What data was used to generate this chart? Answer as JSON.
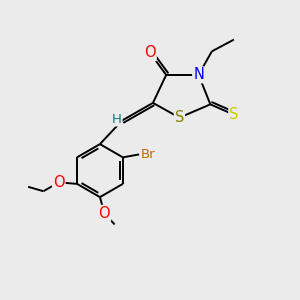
{
  "bg_color": "#ebebeb",
  "bond_color": "#000000",
  "atom_colors": {
    "O": "#ff0000",
    "N": "#0000ff",
    "S_thioxo": "#cccc00",
    "S_ring": "#808000",
    "Br": "#cc6600",
    "H": "#008080",
    "C": "#000000",
    "OEthoxy": "#ff0000",
    "OMethoxy": "#ff0000"
  },
  "font_size": 10
}
